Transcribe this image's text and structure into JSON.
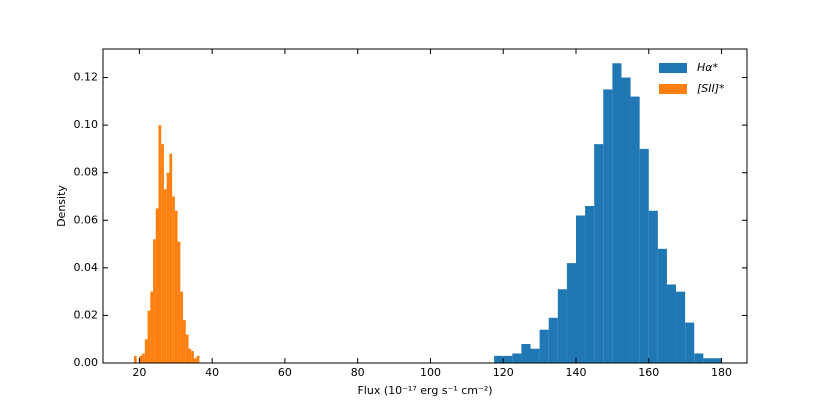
{
  "chart_data": {
    "type": "histogram",
    "xlabel": "Flux (10⁻¹⁷ erg s⁻¹ cm⁻²)",
    "ylabel": "Density",
    "xlim": [
      10,
      187
    ],
    "ylim": [
      0,
      0.132
    ],
    "xticks": [
      20,
      40,
      60,
      80,
      100,
      120,
      140,
      160,
      180
    ],
    "yticks": [
      {
        "value": 0,
        "label": "0.00"
      },
      {
        "value": 0.02,
        "label": "0.02"
      },
      {
        "value": 0.04,
        "label": "0.04"
      },
      {
        "value": 0.06,
        "label": "0.06"
      },
      {
        "value": 0.08,
        "label": "0.08"
      },
      {
        "value": 0.1,
        "label": "0.10"
      },
      {
        "value": 0.12,
        "label": "0.12"
      }
    ],
    "legend": "upper right",
    "series": [
      {
        "name": "Hα*",
        "color": "#1f77b4",
        "bins": [
          117.5,
          120,
          122.5,
          125,
          127.5,
          130,
          132.5,
          135,
          137.5,
          140,
          142.5,
          145,
          147.5,
          150,
          152.5,
          155,
          157.5,
          160,
          162.5,
          165,
          167.5,
          170,
          172.5,
          175,
          177.5,
          180
        ],
        "values": [
          0.003,
          0.003,
          0.004,
          0.008,
          0.006,
          0.014,
          0.019,
          0.031,
          0.042,
          0.062,
          0.066,
          0.092,
          0.115,
          0.126,
          0.12,
          0.112,
          0.09,
          0.064,
          0.048,
          0.033,
          0.03,
          0.017,
          0.004,
          0.002,
          0.002
        ]
      },
      {
        "name": "[SII]*",
        "color": "#ff7f0e",
        "bins": [
          18.5,
          19.25,
          20,
          20.75,
          21.5,
          22.25,
          23,
          23.75,
          24.5,
          25.25,
          26,
          26.75,
          27.5,
          28.25,
          29,
          29.75,
          30.5,
          31.25,
          32,
          32.75,
          33.5,
          34.25,
          35,
          35.75,
          36.5
        ],
        "values": [
          0.003,
          0,
          0.003,
          0.004,
          0.01,
          0.022,
          0.03,
          0.052,
          0.065,
          0.1,
          0.092,
          0.073,
          0.08,
          0.088,
          0.07,
          0.064,
          0.051,
          0.03,
          0.018,
          0.012,
          0.006,
          0.005,
          0.002,
          0.003
        ]
      }
    ]
  }
}
